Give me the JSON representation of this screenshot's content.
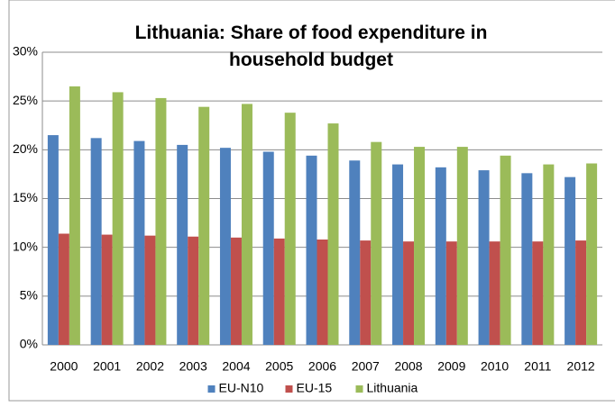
{
  "chart_data": {
    "type": "bar",
    "title": "Lithuania: Share of food expenditure in household budget",
    "categories": [
      "2000",
      "2001",
      "2002",
      "2003",
      "2004",
      "2005",
      "2006",
      "2007",
      "2008",
      "2009",
      "2010",
      "2011",
      "2012"
    ],
    "series": [
      {
        "name": "EU-N10",
        "color": "#4f81bd",
        "values": [
          21.5,
          21.2,
          20.9,
          20.5,
          20.2,
          19.8,
          19.4,
          18.9,
          18.5,
          18.2,
          17.9,
          17.6,
          17.2
        ]
      },
      {
        "name": "EU-15",
        "color": "#c0504d",
        "values": [
          11.4,
          11.3,
          11.2,
          11.1,
          11.0,
          10.9,
          10.8,
          10.7,
          10.6,
          10.6,
          10.6,
          10.6,
          10.7
        ]
      },
      {
        "name": "Lithuania",
        "color": "#9bbb59",
        "values": [
          26.5,
          25.9,
          25.3,
          24.4,
          24.7,
          23.8,
          22.7,
          20.8,
          20.3,
          20.3,
          19.4,
          18.5,
          18.6
        ]
      }
    ],
    "ylim": [
      0,
      30
    ],
    "yticks": [
      {
        "value": 0,
        "label": "0%"
      },
      {
        "value": 5,
        "label": "5%"
      },
      {
        "value": 10,
        "label": "10%"
      },
      {
        "value": 15,
        "label": "15%"
      },
      {
        "value": 20,
        "label": "20%"
      },
      {
        "value": 25,
        "label": "25%"
      },
      {
        "value": 30,
        "label": "30%"
      }
    ],
    "grid": true,
    "legend": "bottom"
  }
}
